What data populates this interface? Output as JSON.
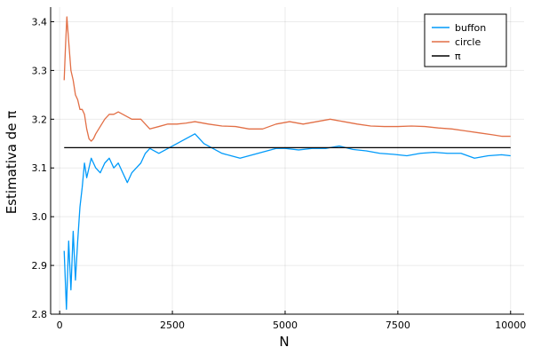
{
  "chart_data": {
    "type": "line",
    "xlabel": "N",
    "ylabel": "Estimativa de π",
    "xlim": [
      -200,
      10300
    ],
    "ylim": [
      2.8,
      3.43
    ],
    "xticks": [
      0,
      2500,
      5000,
      7500,
      10000
    ],
    "yticks": [
      2.8,
      2.9,
      3.0,
      3.1,
      3.2,
      3.3,
      3.4
    ],
    "xtick_labels": [
      "0",
      "2500",
      "5000",
      "7500",
      "10000"
    ],
    "ytick_labels": [
      "2.8",
      "2.9",
      "3.0",
      "3.1",
      "3.2",
      "3.3",
      "3.4"
    ],
    "grid": true,
    "legend_position": "top-right",
    "series": [
      {
        "name": "buffon",
        "color": "#009AFA",
        "points": [
          [
            100,
            2.93
          ],
          [
            150,
            2.81
          ],
          [
            200,
            2.95
          ],
          [
            250,
            2.85
          ],
          [
            300,
            2.97
          ],
          [
            350,
            2.87
          ],
          [
            400,
            2.95
          ],
          [
            450,
            3.02
          ],
          [
            500,
            3.06
          ],
          [
            550,
            3.11
          ],
          [
            600,
            3.08
          ],
          [
            700,
            3.12
          ],
          [
            800,
            3.1
          ],
          [
            900,
            3.09
          ],
          [
            1000,
            3.11
          ],
          [
            1100,
            3.12
          ],
          [
            1200,
            3.1
          ],
          [
            1300,
            3.11
          ],
          [
            1400,
            3.09
          ],
          [
            1500,
            3.07
          ],
          [
            1600,
            3.09
          ],
          [
            1700,
            3.1
          ],
          [
            1800,
            3.11
          ],
          [
            1900,
            3.13
          ],
          [
            2000,
            3.14
          ],
          [
            2200,
            3.13
          ],
          [
            2400,
            3.14
          ],
          [
            2600,
            3.15
          ],
          [
            2800,
            3.16
          ],
          [
            3000,
            3.17
          ],
          [
            3200,
            3.15
          ],
          [
            3400,
            3.14
          ],
          [
            3600,
            3.13
          ],
          [
            3800,
            3.125
          ],
          [
            4000,
            3.12
          ],
          [
            4200,
            3.125
          ],
          [
            4400,
            3.13
          ],
          [
            4600,
            3.135
          ],
          [
            4800,
            3.14
          ],
          [
            5000,
            3.14
          ],
          [
            5300,
            3.137
          ],
          [
            5600,
            3.14
          ],
          [
            5900,
            3.14
          ],
          [
            6200,
            3.145
          ],
          [
            6500,
            3.138
          ],
          [
            6800,
            3.135
          ],
          [
            7100,
            3.13
          ],
          [
            7400,
            3.128
          ],
          [
            7700,
            3.125
          ],
          [
            8000,
            3.13
          ],
          [
            8300,
            3.132
          ],
          [
            8600,
            3.13
          ],
          [
            8900,
            3.13
          ],
          [
            9200,
            3.12
          ],
          [
            9500,
            3.125
          ],
          [
            9800,
            3.127
          ],
          [
            10000,
            3.125
          ]
        ]
      },
      {
        "name": "circle",
        "color": "#E26F46",
        "points": [
          [
            100,
            3.28
          ],
          [
            130,
            3.35
          ],
          [
            160,
            3.41
          ],
          [
            200,
            3.36
          ],
          [
            250,
            3.3
          ],
          [
            300,
            3.28
          ],
          [
            350,
            3.25
          ],
          [
            400,
            3.24
          ],
          [
            450,
            3.22
          ],
          [
            500,
            3.22
          ],
          [
            550,
            3.21
          ],
          [
            600,
            3.18
          ],
          [
            650,
            3.16
          ],
          [
            700,
            3.155
          ],
          [
            750,
            3.16
          ],
          [
            800,
            3.17
          ],
          [
            900,
            3.185
          ],
          [
            1000,
            3.2
          ],
          [
            1100,
            3.21
          ],
          [
            1200,
            3.21
          ],
          [
            1300,
            3.215
          ],
          [
            1400,
            3.21
          ],
          [
            1500,
            3.205
          ],
          [
            1600,
            3.2
          ],
          [
            1700,
            3.2
          ],
          [
            1800,
            3.2
          ],
          [
            1900,
            3.19
          ],
          [
            2000,
            3.18
          ],
          [
            2200,
            3.185
          ],
          [
            2400,
            3.19
          ],
          [
            2600,
            3.19
          ],
          [
            2800,
            3.192
          ],
          [
            3000,
            3.195
          ],
          [
            3300,
            3.19
          ],
          [
            3600,
            3.186
          ],
          [
            3900,
            3.185
          ],
          [
            4200,
            3.18
          ],
          [
            4500,
            3.18
          ],
          [
            4800,
            3.19
          ],
          [
            5100,
            3.195
          ],
          [
            5400,
            3.19
          ],
          [
            5700,
            3.195
          ],
          [
            6000,
            3.2
          ],
          [
            6300,
            3.195
          ],
          [
            6600,
            3.19
          ],
          [
            6900,
            3.186
          ],
          [
            7200,
            3.185
          ],
          [
            7500,
            3.185
          ],
          [
            7800,
            3.186
          ],
          [
            8100,
            3.185
          ],
          [
            8400,
            3.182
          ],
          [
            8700,
            3.18
          ],
          [
            9000,
            3.176
          ],
          [
            9300,
            3.172
          ],
          [
            9600,
            3.168
          ],
          [
            9800,
            3.165
          ],
          [
            10000,
            3.165
          ]
        ]
      },
      {
        "name": "π",
        "color": "#000000",
        "points": [
          [
            100,
            3.14159
          ],
          [
            10000,
            3.14159
          ]
        ]
      }
    ]
  }
}
